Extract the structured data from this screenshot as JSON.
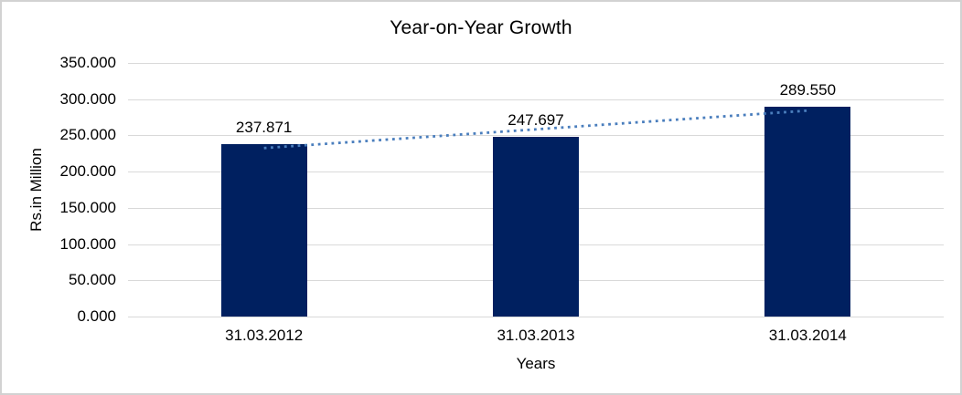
{
  "chart_data": {
    "type": "bar",
    "title": "Year-on-Year Growth",
    "xlabel": "Years",
    "ylabel": "Rs.in Million",
    "categories": [
      "31.03.2012",
      "31.03.2013",
      "31.03.2014"
    ],
    "values": [
      237.871,
      247.697,
      289.55
    ],
    "value_labels": [
      "237.871",
      "247.697",
      "289.550"
    ],
    "yticks": [
      "0.000",
      "50.000",
      "100.000",
      "150.000",
      "200.000",
      "250.000",
      "300.000",
      "350.000"
    ],
    "ylim": [
      0,
      350
    ],
    "grid": true,
    "legend": "none",
    "trendline": {
      "type": "linear",
      "style": "dotted",
      "color": "#4a7ebd"
    },
    "colors": {
      "bar": "#002060",
      "gridline": "#d9d9d9",
      "text": "#000000",
      "border": "#d2d2d2",
      "background": "#ffffff"
    }
  }
}
